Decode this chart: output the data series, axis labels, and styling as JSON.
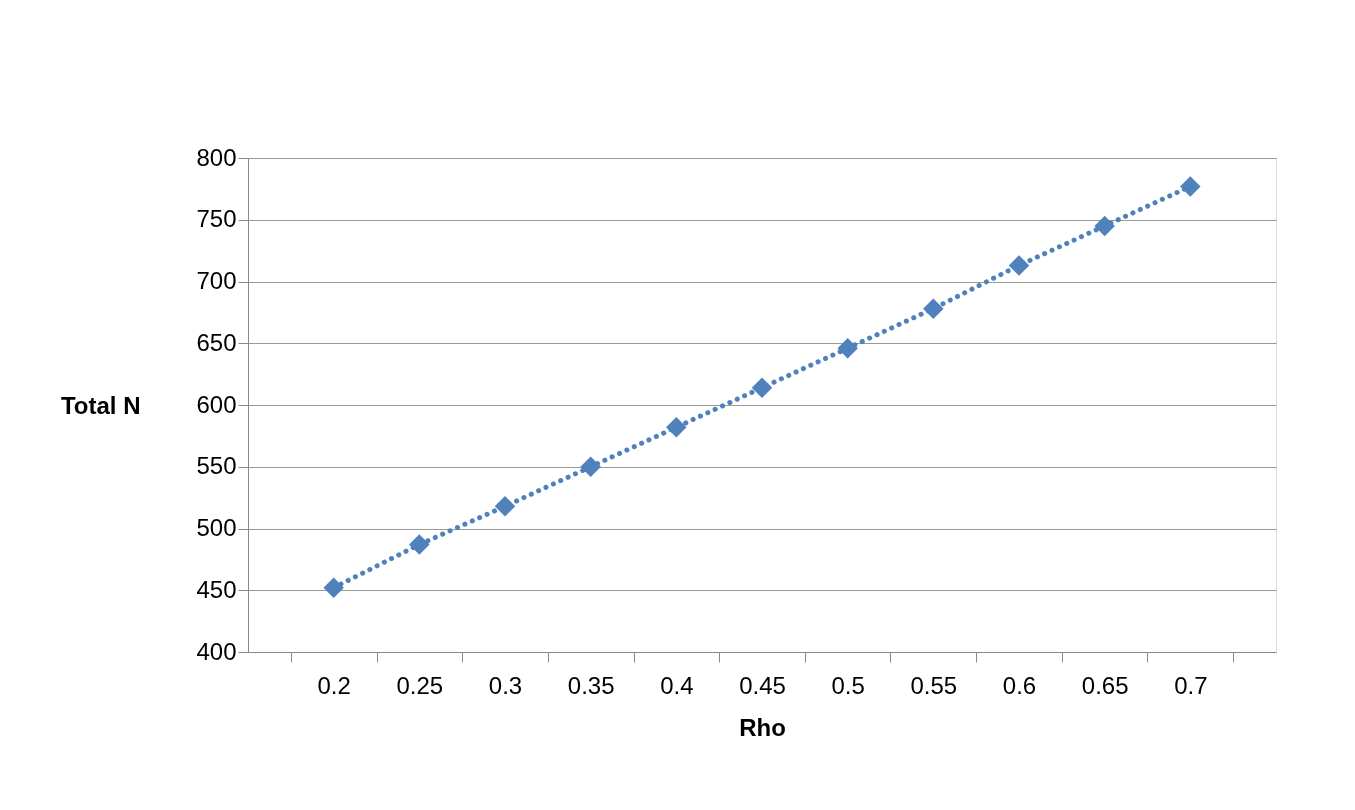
{
  "chart_data": {
    "type": "line",
    "xlabel": "Rho",
    "ylabel": "Total N",
    "categories": [
      "0.2",
      "0.25",
      "0.3",
      "0.35",
      "0.4",
      "0.45",
      "0.5",
      "0.55",
      "0.6",
      "0.65",
      "0.7"
    ],
    "series": [
      {
        "color": "#4f81bd",
        "values": [
          452,
          487,
          518,
          550,
          582,
          614,
          646,
          678,
          713,
          745,
          777
        ]
      }
    ],
    "ylim": [
      400,
      800
    ],
    "yticks": [
      400,
      450,
      500,
      550,
      600,
      650,
      700,
      750,
      800
    ],
    "grid": "y",
    "marker": "diamond",
    "line_style": "dotted"
  }
}
